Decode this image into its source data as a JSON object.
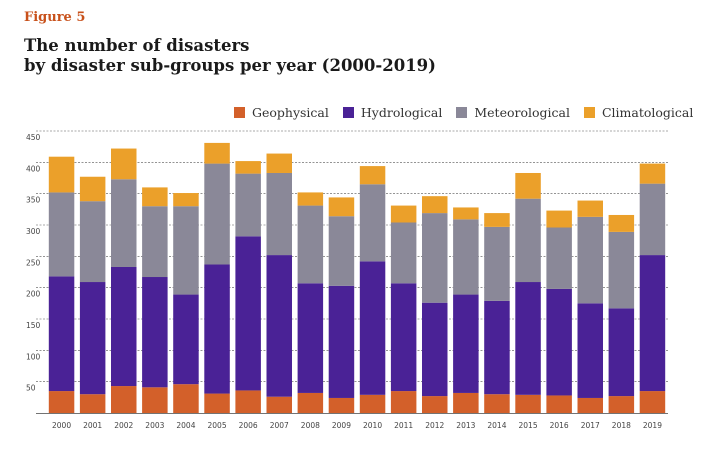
{
  "figure_label": "Figure 5",
  "title_line1": "The number of disasters",
  "title_line2": "by disaster sub-groups per year (2000-2019)",
  "colors": {
    "Geophysical": "#d3602a",
    "Hydrological": "#4a2296",
    "Meteorological": "#8a8898",
    "Climatological": "#eba02a"
  },
  "chart_data": {
    "type": "bar",
    "stacked": true,
    "categories": [
      "2000",
      "2001",
      "2002",
      "2003",
      "2004",
      "2005",
      "2006",
      "2007",
      "2008",
      "2009",
      "2010",
      "2011",
      "2012",
      "2013",
      "2014",
      "2015",
      "2016",
      "2017",
      "2018",
      "2019"
    ],
    "series": [
      {
        "name": "Geophysical",
        "values": [
          35,
          30,
          43,
          41,
          46,
          31,
          36,
          26,
          32,
          24,
          29,
          35,
          27,
          32,
          30,
          29,
          28,
          24,
          27,
          35
        ]
      },
      {
        "name": "Hydrological",
        "values": [
          183,
          179,
          190,
          176,
          143,
          206,
          246,
          226,
          175,
          179,
          213,
          172,
          149,
          157,
          149,
          180,
          170,
          151,
          140,
          217
        ]
      },
      {
        "name": "Meteorological",
        "values": [
          134,
          129,
          140,
          113,
          141,
          161,
          100,
          131,
          124,
          111,
          123,
          97,
          143,
          120,
          118,
          133,
          98,
          138,
          122,
          114
        ]
      },
      {
        "name": "Climatological",
        "values": [
          57,
          39,
          49,
          30,
          21,
          33,
          20,
          31,
          21,
          30,
          29,
          27,
          27,
          19,
          22,
          41,
          27,
          26,
          27,
          32
        ]
      }
    ],
    "ylim": [
      0,
      450
    ],
    "yticks": [
      50,
      100,
      150,
      200,
      250,
      300,
      350,
      400,
      450
    ],
    "grid": true,
    "legend_position": "top"
  }
}
